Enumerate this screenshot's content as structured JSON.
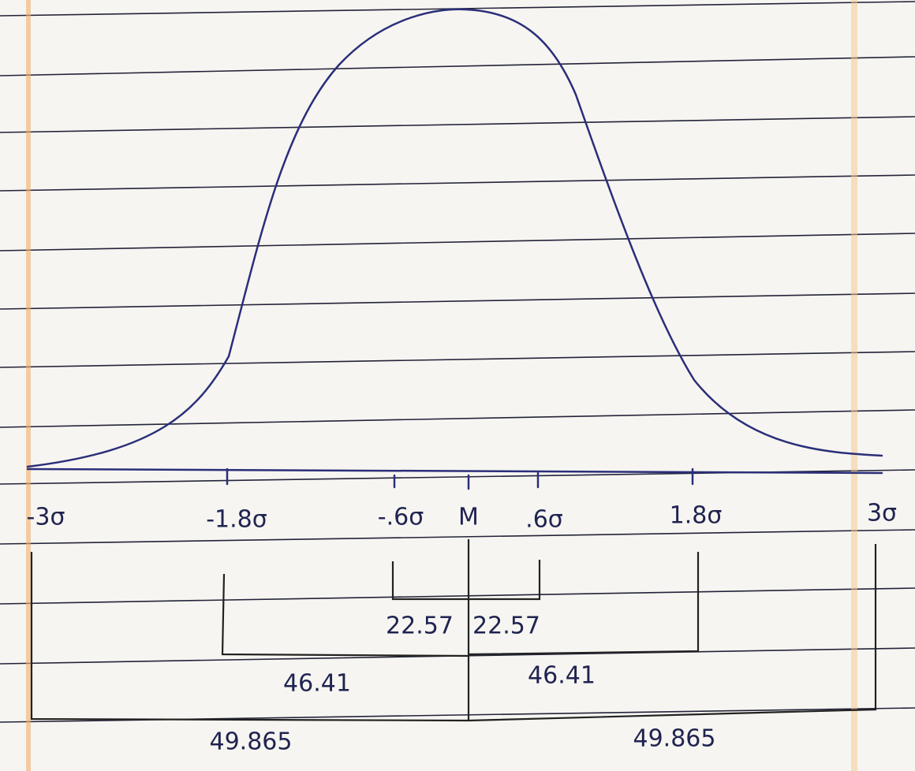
{
  "axis_labels": [
    "-3σ",
    "-1.8σ",
    "-.6σ",
    "M",
    ".6σ",
    "1.8σ",
    "3σ"
  ],
  "brackets": [
    {
      "label": "22.57"
    },
    {
      "label": "22.57"
    },
    {
      "label": "46.41"
    },
    {
      "label": "46.41"
    },
    {
      "label": "49.865"
    },
    {
      "label": "49.865"
    }
  ]
}
